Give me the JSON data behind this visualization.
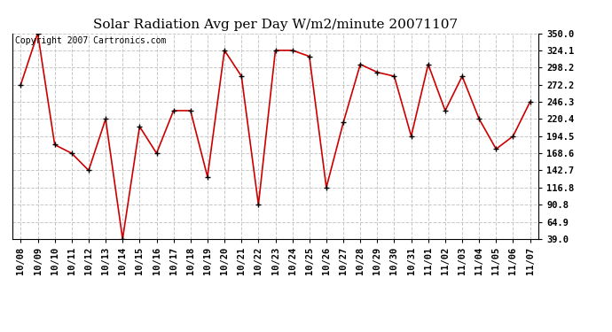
{
  "title": "Solar Radiation Avg per Day W/m2/minute 20071107",
  "copyright_text": "Copyright 2007 Cartronics.com",
  "x_labels": [
    "10/08",
    "10/09",
    "10/10",
    "10/11",
    "10/12",
    "10/13",
    "10/14",
    "10/15",
    "10/16",
    "10/17",
    "10/18",
    "10/19",
    "10/20",
    "10/21",
    "10/22",
    "10/23",
    "10/24",
    "10/25",
    "10/26",
    "10/27",
    "10/28",
    "10/29",
    "10/30",
    "10/31",
    "11/01",
    "11/02",
    "11/03",
    "11/04",
    "11/05",
    "11/06",
    "11/07"
  ],
  "y_values": [
    272.2,
    350.0,
    181.5,
    168.6,
    142.7,
    220.4,
    39.0,
    209.0,
    168.6,
    233.0,
    233.0,
    133.0,
    324.1,
    285.0,
    90.8,
    324.1,
    324.1,
    315.0,
    116.8,
    215.0,
    303.0,
    291.0,
    285.0,
    194.5,
    303.0,
    233.0,
    285.0,
    220.4,
    175.0,
    194.5,
    246.3
  ],
  "line_color": "#cc0000",
  "marker_color": "#000000",
  "background_color": "#ffffff",
  "grid_color": "#c8c8c8",
  "y_tick_values": [
    39.0,
    64.9,
    90.8,
    116.8,
    142.7,
    168.6,
    194.5,
    220.4,
    246.3,
    272.2,
    298.2,
    324.1,
    350.0
  ],
  "ylim": [
    39.0,
    350.0
  ],
  "title_fontsize": 11,
  "tick_fontsize": 7.5,
  "copyright_fontsize": 7
}
